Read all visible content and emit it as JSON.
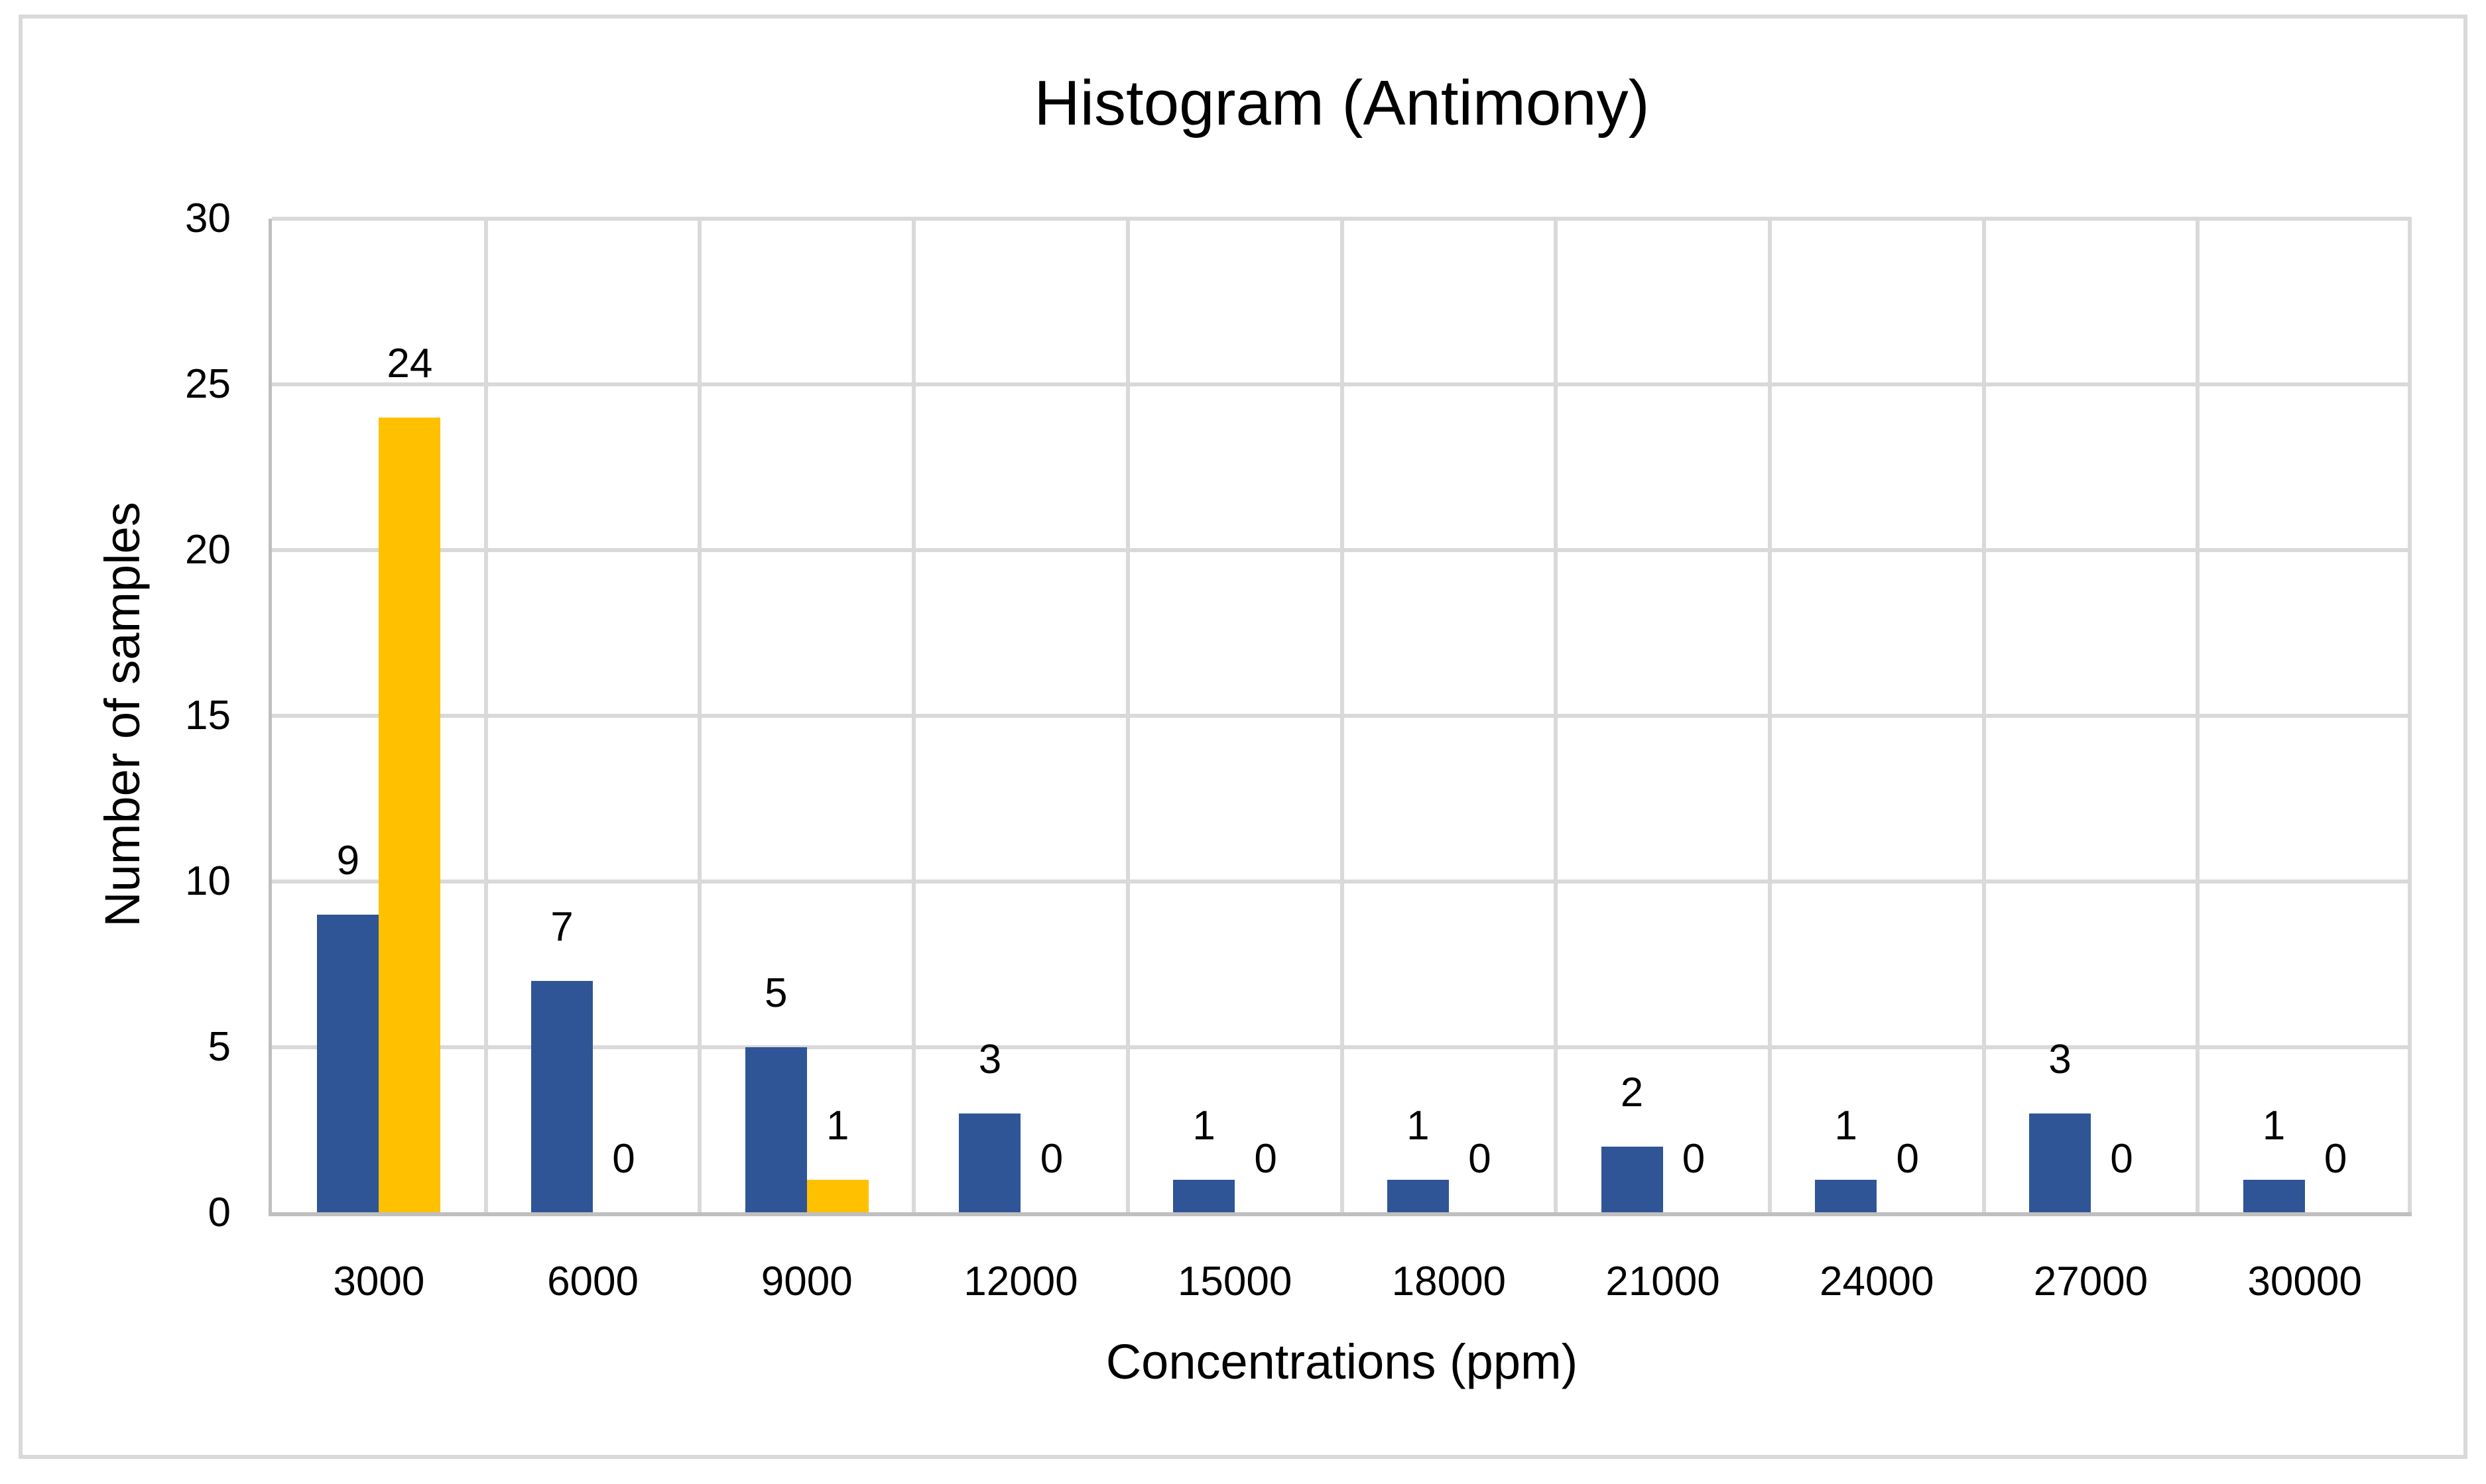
{
  "chart_data": {
    "type": "bar",
    "title": "Histogram (Antimony)",
    "xlabel": "Concentrations (ppm)",
    "ylabel": "Number of samples",
    "categories": [
      "3000",
      "6000",
      "9000",
      "12000",
      "15000",
      "18000",
      "21000",
      "24000",
      "27000",
      "30000"
    ],
    "series": [
      {
        "name": "blue-series",
        "color": "#2F5597",
        "values": [
          9,
          7,
          5,
          3,
          1,
          1,
          2,
          1,
          3,
          1
        ]
      },
      {
        "name": "gold-series",
        "color": "#FFC000",
        "values": [
          24,
          0,
          1,
          0,
          0,
          0,
          0,
          0,
          0,
          0
        ]
      }
    ],
    "ylim": [
      0,
      30
    ],
    "yticks": [
      0,
      5,
      10,
      15,
      20,
      25,
      30
    ],
    "grid": true,
    "legend": "none",
    "data_labels": true
  },
  "colors": {
    "gridline": "#D9D9D9",
    "axis_line": "#BFBFBF",
    "chart_border": "#D9D9D9",
    "background": "#FFFFFF",
    "text": "#000000"
  }
}
